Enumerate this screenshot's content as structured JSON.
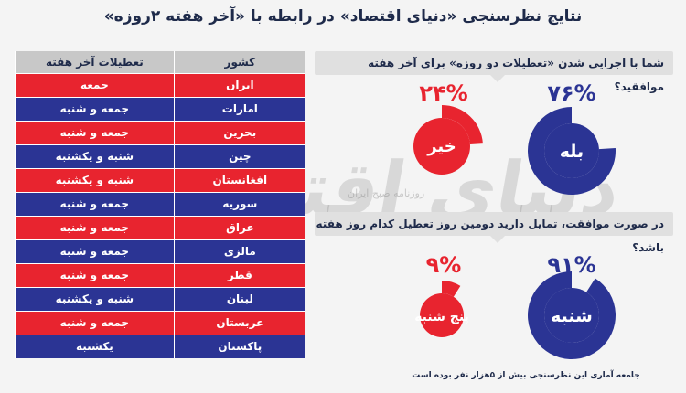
{
  "title": "نتایج نظرسنجی «دنیای اقتصاد» در رابطه با «آخر هفته ۲روزه»",
  "table": {
    "headers": [
      "کشور",
      "تعطیلات آخر هفته"
    ],
    "rows": [
      {
        "country": "ایران",
        "weekend": "جمعه",
        "color": "#e8242f"
      },
      {
        "country": "امارات",
        "weekend": "جمعه و شنبه",
        "color": "#2b3494"
      },
      {
        "country": "بحرین",
        "weekend": "جمعه و شنبه",
        "color": "#e8242f"
      },
      {
        "country": "چین",
        "weekend": "شنبه و یکشنبه",
        "color": "#2b3494"
      },
      {
        "country": "افغانستان",
        "weekend": "شنبه و یکشنبه",
        "color": "#e8242f"
      },
      {
        "country": "سوریه",
        "weekend": "جمعه و شنبه",
        "color": "#2b3494"
      },
      {
        "country": "عراق",
        "weekend": "جمعه و شنبه",
        "color": "#e8242f"
      },
      {
        "country": "مالزی",
        "weekend": "جمعه و شنبه",
        "color": "#2b3494"
      },
      {
        "country": "قطر",
        "weekend": "جمعه و شنبه",
        "color": "#e8242f"
      },
      {
        "country": "لبنان",
        "weekend": "شنبه و یکشنبه",
        "color": "#2b3494"
      },
      {
        "country": "عربستان",
        "weekend": "جمعه و شنبه",
        "color": "#e8242f"
      },
      {
        "country": "پاکستان",
        "weekend": "یکشنبه",
        "color": "#2b3494"
      }
    ]
  },
  "chart_data": [
    {
      "type": "pie",
      "question": "شما با اجرایی شدن «تعطیلات دو روزه» برای آخر هفته موافقید؟",
      "slices": [
        {
          "label": "بله",
          "value": 76,
          "pct_text": "۷۶%",
          "color": "#2b3494"
        },
        {
          "label": "خیر",
          "value": 24,
          "pct_text": "۲۴%",
          "color": "#e8242f"
        }
      ]
    },
    {
      "type": "pie",
      "question": "در صورت موافقت، تمایل دارید دومین روز تعطیل کدام روز هفته باشد؟",
      "slices": [
        {
          "label": "شنبه",
          "value": 91,
          "pct_text": "۹۱%",
          "color": "#2b3494"
        },
        {
          "label": "پنج شنبه",
          "value": 9,
          "pct_text": "۹%",
          "color": "#e8242f"
        }
      ]
    }
  ],
  "footnote": "جامعه آماری این نظرسنجی بیش از ۵هزار نفر بوده است",
  "watermark": {
    "main": "دنیای اقتصاد",
    "sub": "روزنامه صبح ایران"
  }
}
